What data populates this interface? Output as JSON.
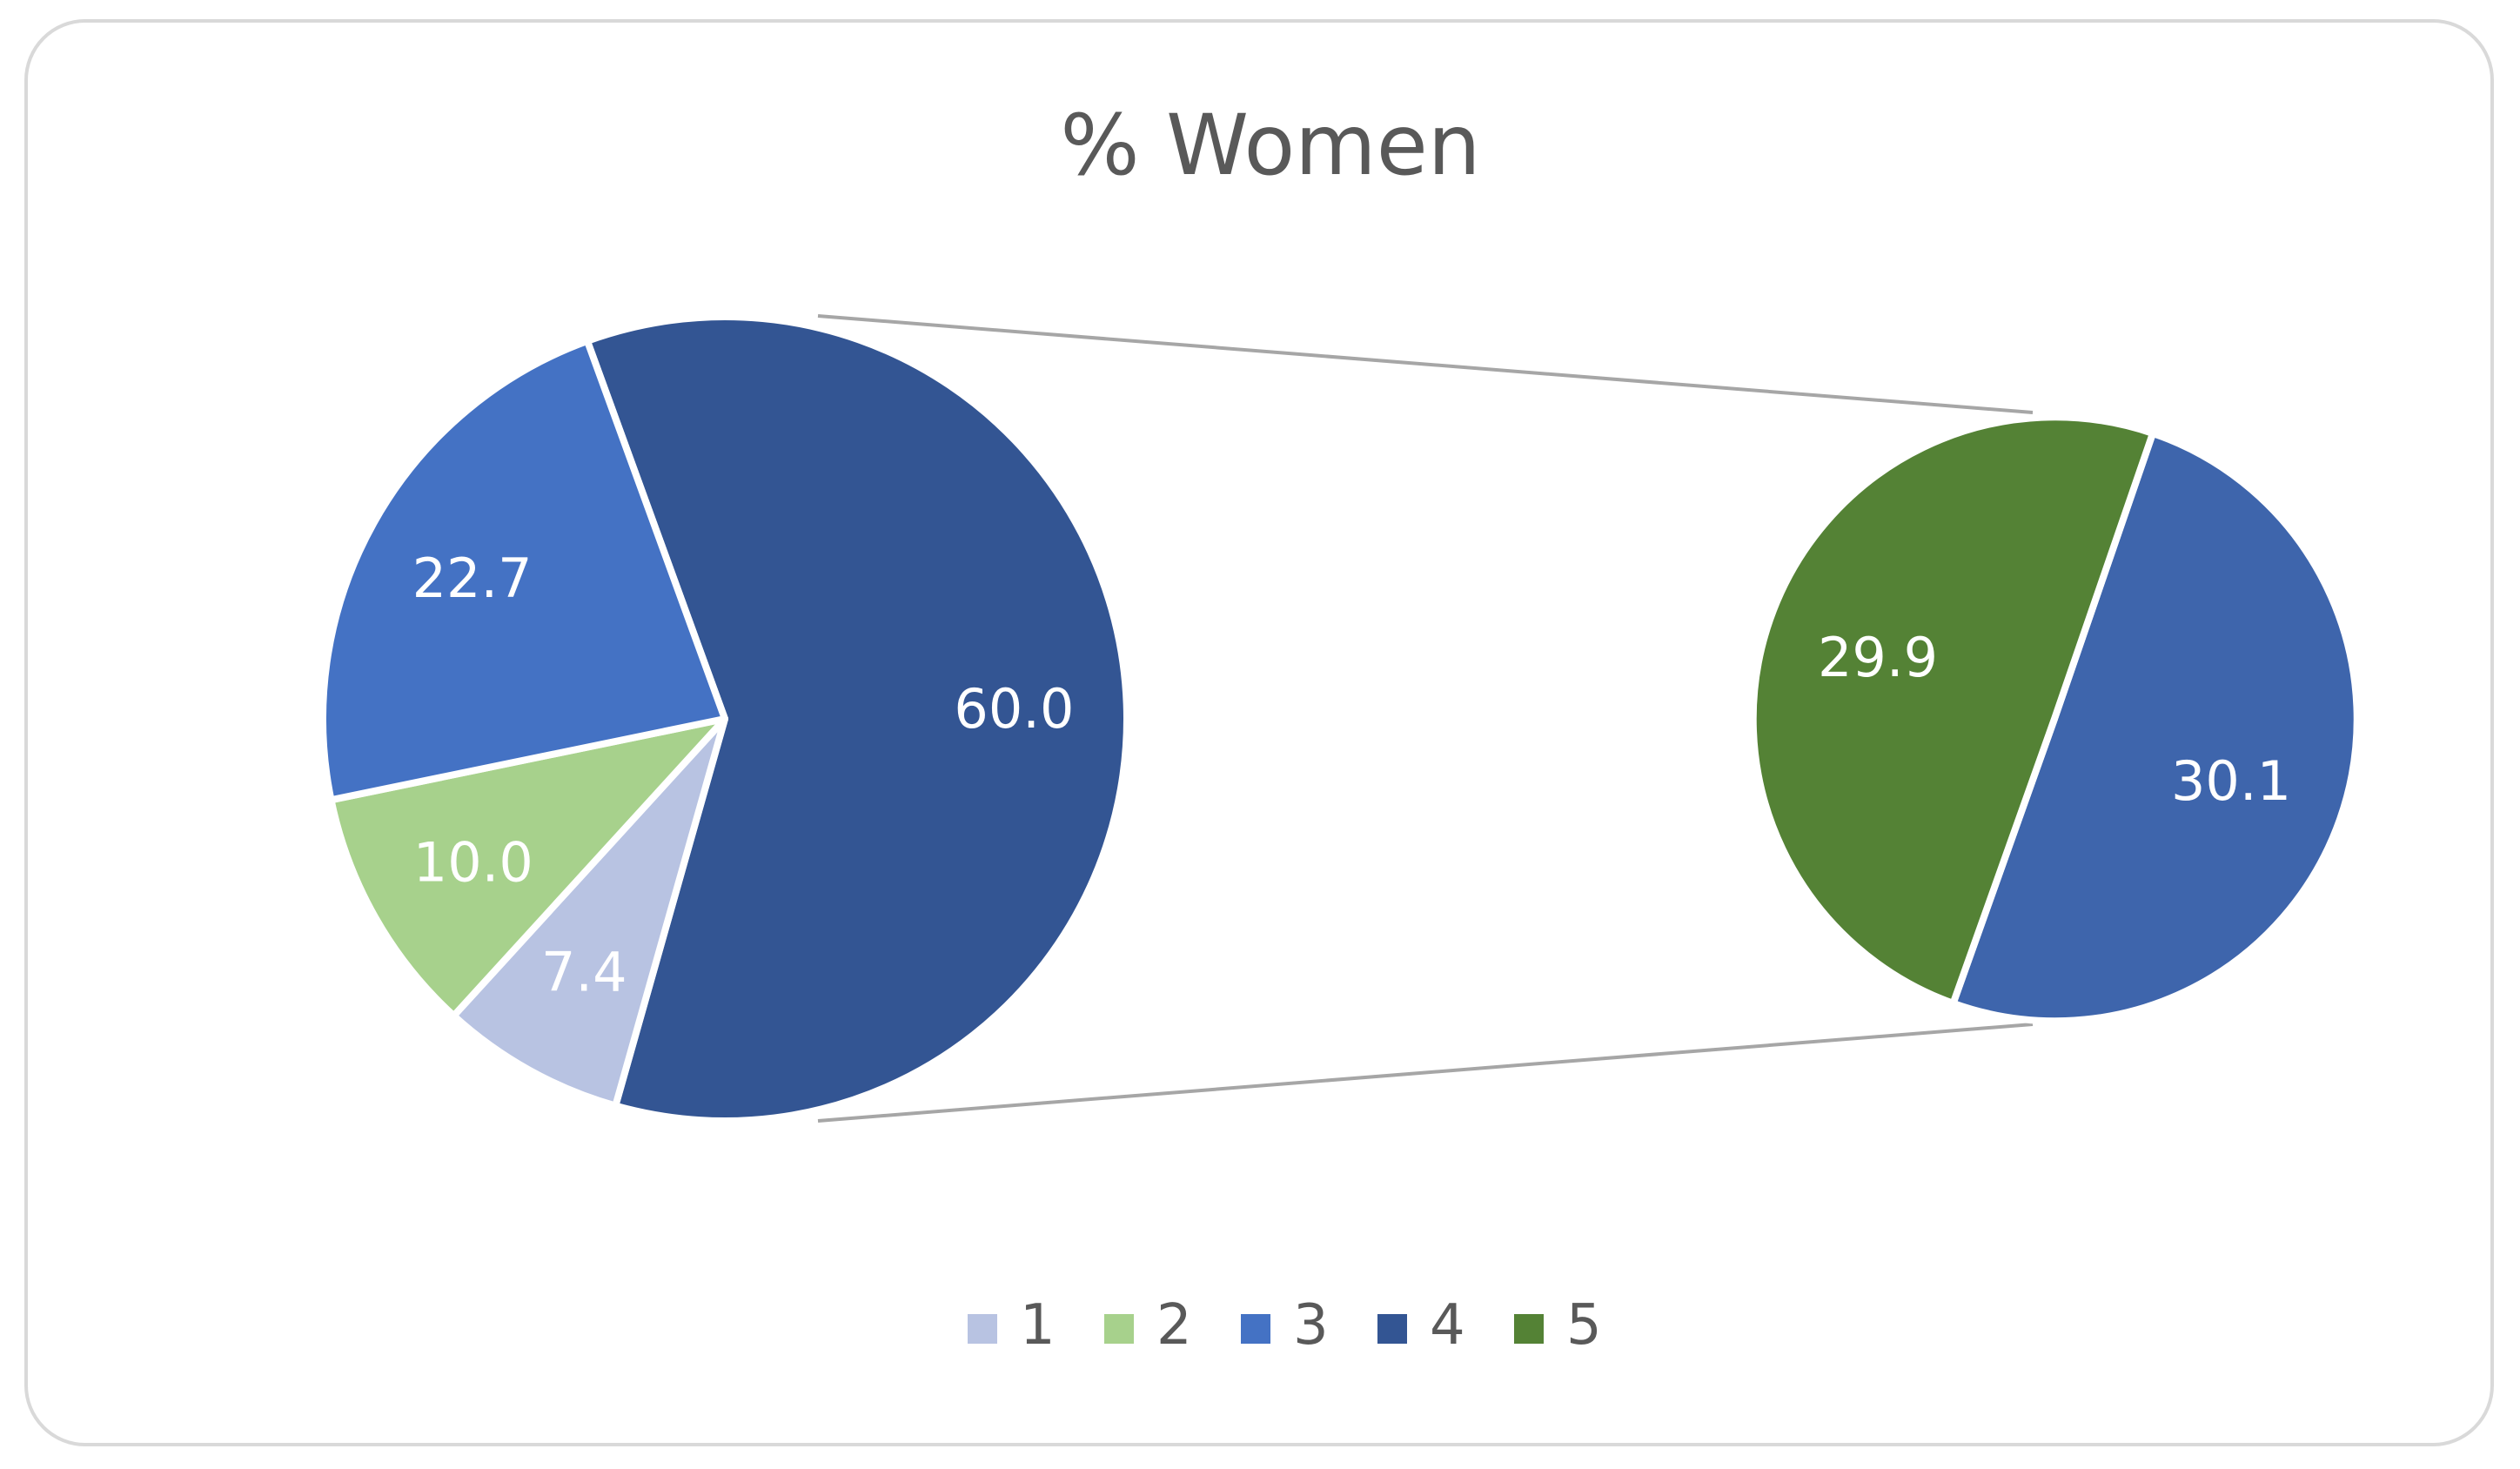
{
  "chart_data": {
    "type": "pie",
    "subtype": "pie-of-pie",
    "title": "% Women",
    "primary_pie": {
      "slices": [
        {
          "category": "4",
          "value": 60.0,
          "label": "60.0",
          "color": "#335593"
        },
        {
          "category": "1",
          "value": 7.4,
          "label": "7.4",
          "color": "#B8C3E2"
        },
        {
          "category": "2",
          "value": 10.0,
          "label": "10.0",
          "color": "#A7D18C"
        },
        {
          "category": "3",
          "value": 22.7,
          "label": "22.7",
          "color": "#4472C4"
        }
      ]
    },
    "secondary_pie": {
      "slices": [
        {
          "category": "4",
          "value": 30.1,
          "label": "30.1",
          "color": "#3E65AC"
        },
        {
          "category": "5",
          "value": 29.9,
          "label": "29.9",
          "color": "#548235"
        }
      ]
    },
    "legend": {
      "position": "bottom",
      "entries": [
        {
          "label": "1",
          "color": "#B8C3E2"
        },
        {
          "label": "2",
          "color": "#A7D18C"
        },
        {
          "label": "3",
          "color": "#4472C4"
        },
        {
          "label": "4",
          "color": "#335593"
        },
        {
          "label": "5",
          "color": "#548235"
        }
      ]
    }
  }
}
